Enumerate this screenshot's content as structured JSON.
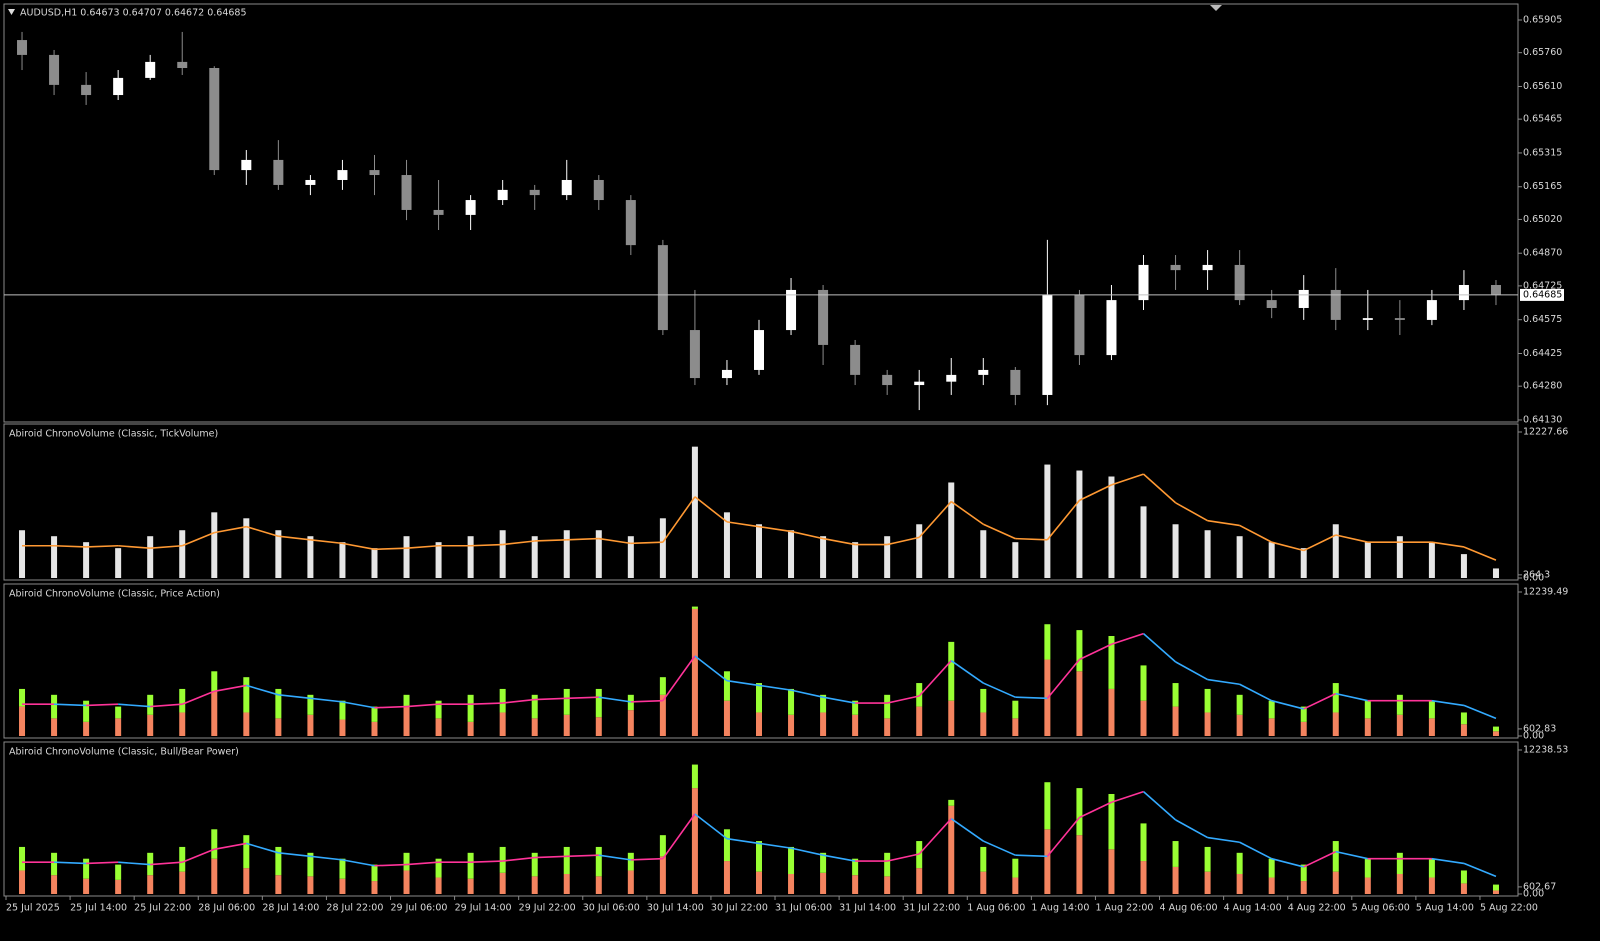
{
  "chart_data": [
    {
      "type": "candlestick",
      "title": "AUDUSD,H1  0.64673 0.64707 0.64672 0.64685",
      "categories": [
        "25 Jul 2025",
        null,
        "25 Jul 14:00",
        null,
        "25 Jul 22:00",
        null,
        "28 Jul 06:00",
        null,
        "28 Jul 14:00",
        null,
        "28 Jul 22:00",
        null,
        "29 Jul 06:00",
        null,
        "29 Jul 14:00",
        null,
        "29 Jul 22:00",
        null,
        "30 Jul 06:00",
        null,
        "30 Jul 14:00",
        null,
        "30 Jul 22:00",
        null,
        "31 Jul 06:00",
        null,
        "31 Jul 14:00",
        null,
        "31 Jul 22:00",
        null,
        "1 Aug 06:00",
        null,
        "1 Aug 14:00",
        null,
        "1 Aug 22:00",
        null,
        "4 Aug 06:00",
        null,
        "4 Aug 14:00",
        null,
        "4 Aug 22:00",
        null,
        "5 Aug 06:00",
        null,
        "5 Aug 14:00",
        null,
        "5 Aug 22:00"
      ],
      "open": [
        0.65816,
        0.6575,
        0.65617,
        0.65572,
        0.65648,
        0.65719,
        0.65692,
        0.65239,
        0.65284,
        0.65173,
        0.65195,
        0.65239,
        0.65217,
        0.65062,
        0.6504,
        0.65106,
        0.65151,
        0.65128,
        0.65195,
        0.65106,
        0.64906,
        0.64529,
        0.64316,
        0.64352,
        0.64529,
        0.64707,
        0.64463,
        0.6433,
        0.64285,
        0.643,
        0.6433,
        0.64352,
        0.64241,
        0.64685,
        0.64418,
        0.64662,
        0.64818,
        0.64795,
        0.64818,
        0.64662,
        0.64627,
        0.64707,
        0.64574,
        0.64582,
        0.64574,
        0.64662,
        0.64729
      ],
      "high": [
        0.65852,
        0.65772,
        0.65674,
        0.65683,
        0.6575,
        0.65852,
        0.657,
        0.65328,
        0.65372,
        0.65217,
        0.65284,
        0.65306,
        0.65284,
        0.65195,
        0.65128,
        0.65195,
        0.65173,
        0.65284,
        0.65217,
        0.65128,
        0.64929,
        0.64707,
        0.64396,
        0.64574,
        0.6476,
        0.64729,
        0.64485,
        0.64352,
        0.64352,
        0.64405,
        0.64405,
        0.64365,
        0.64929,
        0.64707,
        0.64729,
        0.64862,
        0.64862,
        0.64884,
        0.64884,
        0.64707,
        0.64773,
        0.64804,
        0.64707,
        0.64662,
        0.64707,
        0.64795,
        0.64751
      ],
      "low": [
        0.65683,
        0.65572,
        0.65528,
        0.6555,
        0.65639,
        0.65661,
        0.65217,
        0.65173,
        0.65151,
        0.65128,
        0.65151,
        0.65128,
        0.65017,
        0.64973,
        0.64973,
        0.65084,
        0.65062,
        0.65106,
        0.65062,
        0.64862,
        0.64507,
        0.64285,
        0.64285,
        0.6433,
        0.64507,
        0.64374,
        0.64285,
        0.64241,
        0.64174,
        0.64241,
        0.64285,
        0.64196,
        0.64196,
        0.64374,
        0.64396,
        0.64618,
        0.64707,
        0.64707,
        0.6464,
        0.64582,
        0.64574,
        0.64529,
        0.64529,
        0.64507,
        0.64551,
        0.64618,
        0.6464
      ],
      "close": [
        0.6575,
        0.65617,
        0.65572,
        0.65648,
        0.65719,
        0.65692,
        0.65239,
        0.65284,
        0.65173,
        0.65195,
        0.65239,
        0.65217,
        0.65062,
        0.6504,
        0.65106,
        0.65151,
        0.65128,
        0.65195,
        0.65106,
        0.64906,
        0.64529,
        0.64316,
        0.64352,
        0.64529,
        0.64707,
        0.64463,
        0.6433,
        0.64285,
        0.643,
        0.6433,
        0.64352,
        0.64241,
        0.64685,
        0.64418,
        0.64662,
        0.64818,
        0.64795,
        0.64818,
        0.64662,
        0.64627,
        0.64707,
        0.64574,
        0.64582,
        0.64574,
        0.64662,
        0.64729,
        0.64685
      ],
      "up_color": "#ffffff",
      "down_color": "#8c8c8c",
      "price_line": 0.64685,
      "ylim": [
        0.64121,
        0.65976
      ],
      "yticks": [
        0.65905,
        {
          "value": 0.6576,
          "label": "0.65760"
        },
        {
          "value": 0.6561,
          "label": "0.65610"
        },
        0.65465,
        0.65315,
        0.65165,
        {
          "value": 0.6502,
          "label": "0.65020"
        },
        {
          "value": 0.6487,
          "label": "0.64870"
        },
        0.64725,
        0.64575,
        0.64425,
        {
          "value": 0.6428,
          "label": "0.64280"
        },
        {
          "value": 0.6413,
          "label": "0.64130"
        }
      ]
    },
    {
      "type": "bar",
      "title": "Abiroid ChronoVolume (Classic, TickVolume)",
      "values": [
        4000,
        3500,
        3000,
        2500,
        3500,
        4000,
        5500,
        5000,
        4000,
        3500,
        3000,
        2500,
        3500,
        3000,
        3500,
        4000,
        3500,
        4000,
        4000,
        3500,
        5000,
        11000,
        5500,
        4500,
        4000,
        3500,
        3000,
        3500,
        4500,
        8000,
        4000,
        3000,
        9500,
        9000,
        8500,
        6000,
        4500,
        4000,
        3500,
        3000,
        2500,
        4500,
        3000,
        3500,
        3000,
        2000,
        800
      ],
      "color": "#e6e6e6",
      "line": {
        "values": [
          2700,
          2700,
          2600,
          2700,
          2500,
          2700,
          3800,
          4300,
          3500,
          3200,
          2900,
          2400,
          2500,
          2700,
          2700,
          2800,
          3100,
          3200,
          3300,
          2900,
          3000,
          6800,
          4700,
          4300,
          3900,
          3300,
          2800,
          2800,
          3400,
          6400,
          4500,
          3300,
          3200,
          6500,
          7800,
          8700,
          6300,
          4800,
          4400,
          3000,
          2300,
          3600,
          3000,
          3000,
          3000,
          2600,
          1500
        ],
        "color": "#ff9933"
      },
      "ylim": [
        0,
        12227.66
      ],
      "yticks": [
        {
          "value": 0,
          "label": "0.00"
        },
        264.3,
        12227.66
      ]
    },
    {
      "type": "stacked_bar",
      "title": "Abiroid ChronoVolume (Classic, Price Action)",
      "series": [
        {
          "color": "#f4845f",
          "values": [
            2500,
            1500,
            1200,
            1500,
            1800,
            2000,
            3800,
            2000,
            1500,
            1800,
            1400,
            1200,
            2500,
            1500,
            1200,
            2000,
            1500,
            1800,
            1600,
            2200,
            3500,
            10800,
            3000,
            2000,
            1800,
            2000,
            1800,
            1500,
            2500,
            3000,
            2000,
            1500,
            6500,
            5500,
            4000,
            3000,
            2500,
            2000,
            1800,
            1500,
            1200,
            2000,
            1500,
            1800,
            1500,
            1000,
            400
          ]
        },
        {
          "color": "#99ff33",
          "values": [
            1500,
            2000,
            1800,
            1000,
            1700,
            2000,
            1700,
            3000,
            2500,
            1700,
            1600,
            1300,
            1000,
            1500,
            2300,
            2000,
            2000,
            2200,
            2400,
            1300,
            1500,
            200,
            2500,
            2500,
            2200,
            1500,
            1200,
            2000,
            2000,
            5000,
            2000,
            1500,
            3000,
            3500,
            4500,
            3000,
            2000,
            2000,
            1700,
            1500,
            1300,
            2500,
            1500,
            1700,
            1500,
            1000,
            400
          ]
        }
      ],
      "line": {
        "values": [
          2700,
          2700,
          2600,
          2700,
          2500,
          2700,
          3800,
          4300,
          3500,
          3200,
          2900,
          2400,
          2500,
          2700,
          2700,
          2800,
          3100,
          3200,
          3300,
          2900,
          3000,
          6800,
          4700,
          4300,
          3900,
          3300,
          2800,
          2800,
          3400,
          6400,
          4500,
          3300,
          3200,
          6500,
          7800,
          8700,
          6300,
          4800,
          4400,
          3000,
          2300,
          3600,
          3000,
          3000,
          3000,
          2600,
          1500
        ],
        "color": "#ff3399",
        "falling_color": "#33aaff"
      },
      "ylim": [
        0,
        12239.49
      ],
      "yticks": [
        {
          "value": 0,
          "label": "0.00"
        },
        602.83,
        12239.49
      ]
    },
    {
      "type": "stacked_bar",
      "title": "Abiroid ChronoVolume (Classic, Bull/Bear Power)",
      "series": [
        {
          "color": "#f4845f",
          "values": [
            2000,
            1600,
            1300,
            1200,
            1600,
            1900,
            3000,
            2200,
            1600,
            1500,
            1300,
            1100,
            2000,
            1400,
            1300,
            1800,
            1500,
            1700,
            1500,
            2000,
            3200,
            9000,
            2800,
            1900,
            1700,
            1800,
            1600,
            1500,
            2200,
            7500,
            1900,
            1400,
            5500,
            5000,
            3800,
            2800,
            2300,
            1900,
            1700,
            1400,
            1100,
            1900,
            1400,
            1700,
            1400,
            900,
            300
          ]
        },
        {
          "color": "#99ff33",
          "values": [
            2000,
            1900,
            1700,
            1300,
            1900,
            2100,
            2500,
            2800,
            2400,
            2000,
            1700,
            1400,
            1500,
            1600,
            2200,
            2200,
            2000,
            2300,
            2500,
            1500,
            1800,
            2000,
            2700,
            2600,
            2300,
            1700,
            1400,
            2000,
            2300,
            500,
            2100,
            1600,
            4000,
            4000,
            4700,
            3200,
            2200,
            2100,
            1800,
            1600,
            1400,
            2600,
            1600,
            1800,
            1600,
            1100,
            500
          ]
        }
      ],
      "line": {
        "values": [
          2700,
          2700,
          2600,
          2700,
          2500,
          2700,
          3800,
          4300,
          3500,
          3200,
          2900,
          2400,
          2500,
          2700,
          2700,
          2800,
          3100,
          3200,
          3300,
          2900,
          3000,
          6800,
          4700,
          4300,
          3900,
          3300,
          2800,
          2800,
          3400,
          6400,
          4500,
          3300,
          3200,
          6500,
          7800,
          8700,
          6300,
          4800,
          4400,
          3000,
          2300,
          3600,
          3000,
          3000,
          3000,
          2600,
          1500
        ],
        "color": "#ff3399",
        "falling_color": "#33aaff"
      },
      "ylim": [
        0,
        12238.53
      ],
      "yticks": [
        {
          "value": 0,
          "label": "0.00"
        },
        602.67,
        12238.53
      ]
    }
  ]
}
